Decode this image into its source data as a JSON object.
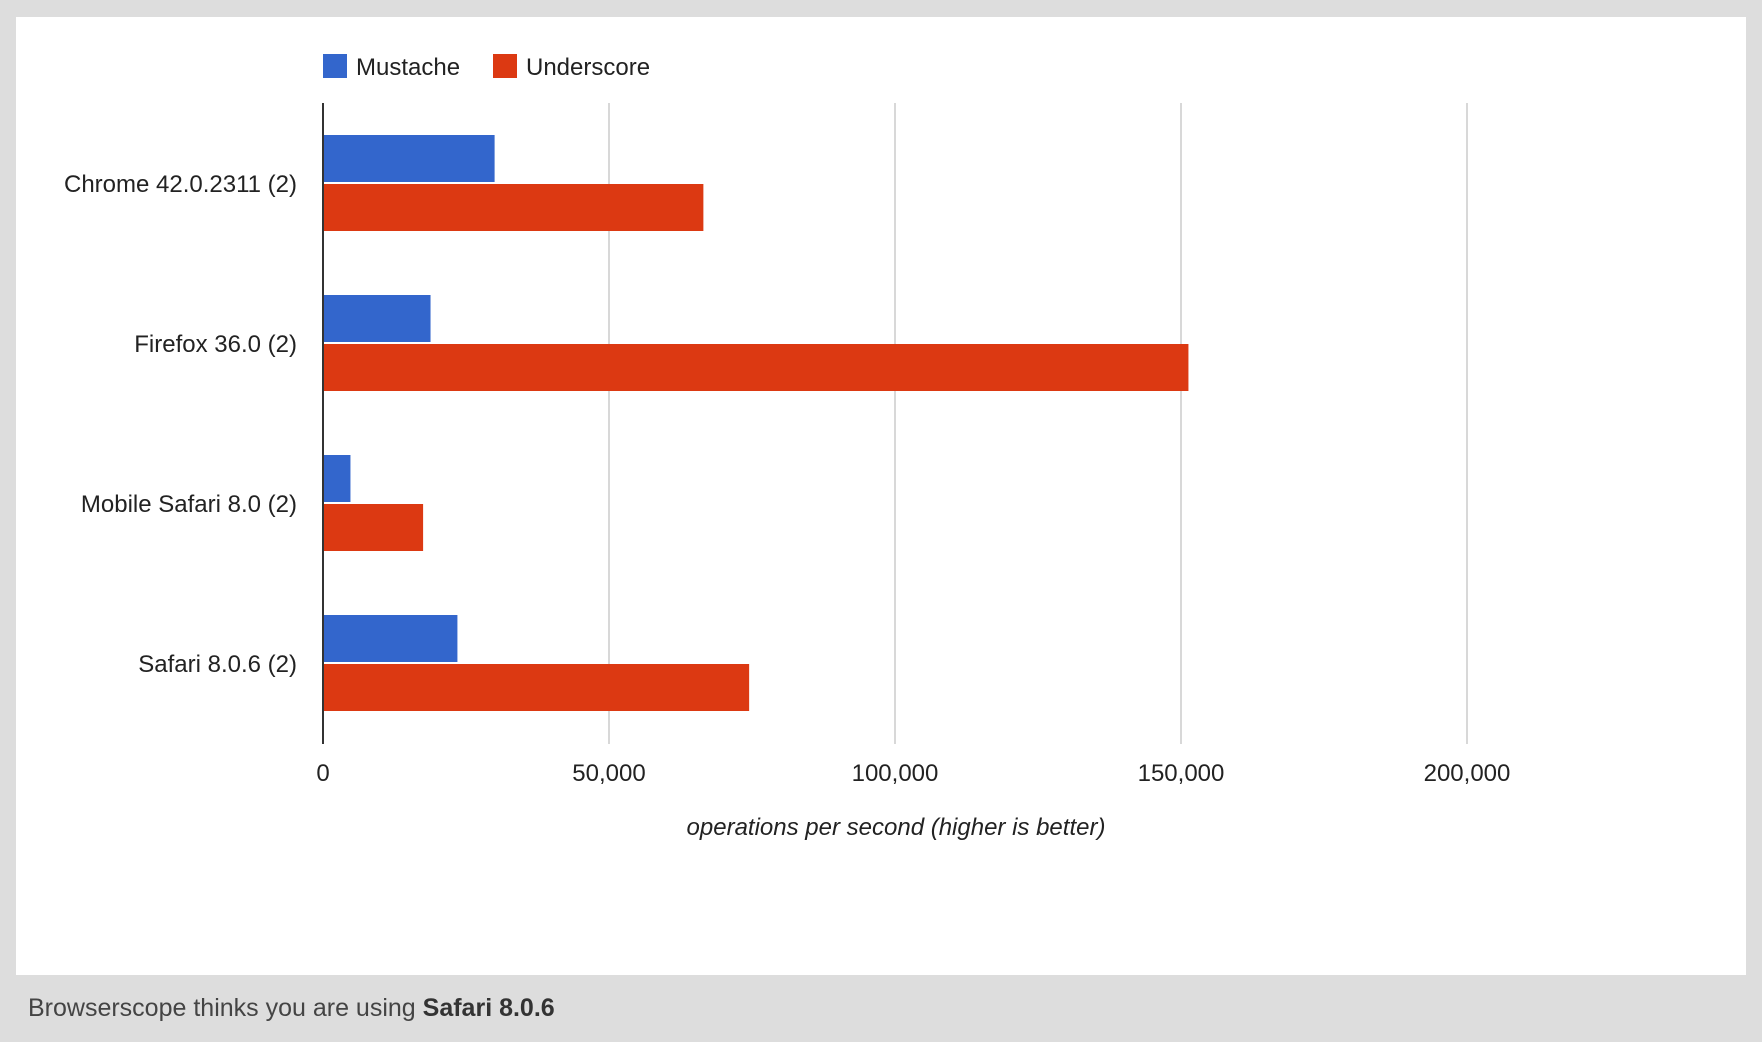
{
  "footer": {
    "prefix": "Browserscope thinks you are using",
    "browser": "Safari 8.0.6"
  },
  "colors": {
    "Mustache": "#3366cc",
    "Underscore": "#dc3912",
    "grid": "#cccccc",
    "axis": "#333333",
    "frame": "#dddddd"
  },
  "chart_data": {
    "type": "bar",
    "orientation": "horizontal",
    "categories": [
      "Chrome 42.0.2311 (2)",
      "Firefox 36.0 (2)",
      "Mobile Safari 8.0 (2)",
      "Safari 8.0.6 (2)"
    ],
    "series": [
      {
        "name": "Mustache",
        "values": [
          30000,
          18800,
          4800,
          23500
        ]
      },
      {
        "name": "Underscore",
        "values": [
          66500,
          151300,
          17500,
          74500
        ]
      }
    ],
    "xlabel": "operations per second (higher is better)",
    "ylabel": "",
    "xlim": [
      0,
      200000
    ],
    "xticks": [
      0,
      50000,
      100000,
      150000,
      200000
    ],
    "xtick_labels": [
      "0",
      "50,000",
      "100,000",
      "150,000",
      "200,000"
    ],
    "grid": true,
    "legend": "top-left"
  }
}
